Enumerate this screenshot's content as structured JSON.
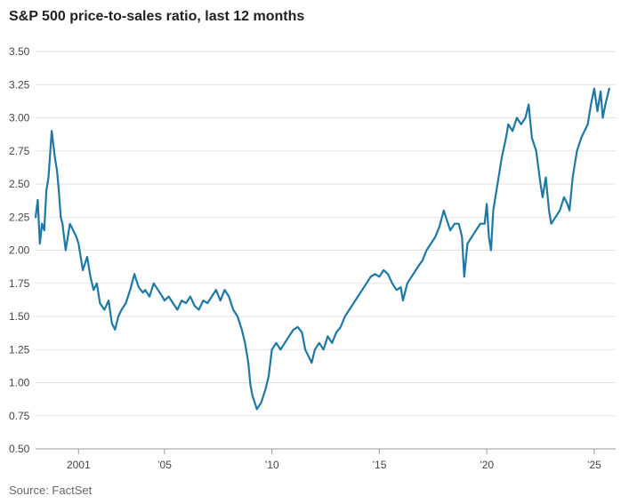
{
  "title": "S&P 500 price-to-sales ratio, last 12 months",
  "source": "Source: FactSet",
  "chart_data": {
    "type": "line",
    "title": "S&P 500 price-to-sales ratio, last 12 months",
    "xlabel": "",
    "ylabel": "",
    "ylim": [
      0.5,
      3.5
    ],
    "yticks": [
      3.5,
      3.25,
      3.0,
      2.75,
      2.5,
      2.25,
      2.0,
      1.75,
      1.5,
      1.25,
      1.0,
      0.75,
      0.5
    ],
    "ytick_labels": [
      "3.50",
      "3.25",
      "3.00",
      "2.75",
      "2.50",
      "2.25",
      "2.00",
      "1.75",
      "1.50",
      "1.25",
      "1.00",
      "0.75",
      "0.50"
    ],
    "xlim": [
      1999.0,
      2026.0
    ],
    "xticks": [
      2001,
      2005,
      2010,
      2015,
      2020,
      2025
    ],
    "xtick_labels": [
      "2001",
      "’05",
      "’10",
      "’15",
      "’20",
      "’25"
    ],
    "grid": true,
    "line_color": "#1e78a6",
    "series": [
      {
        "x": [
          1999.0,
          1999.1,
          1999.2,
          1999.3,
          1999.4,
          1999.5,
          1999.6,
          1999.75,
          1999.9,
          2000.0,
          2000.08,
          2000.17,
          2000.25,
          2000.4,
          2000.6,
          2000.75,
          2000.9,
          2001.0,
          2001.2,
          2001.4,
          2001.55,
          2001.7,
          2001.85,
          2002.0,
          2002.2,
          2002.4,
          2002.55,
          2002.7,
          2002.85,
          2003.0,
          2003.2,
          2003.4,
          2003.6,
          2003.8,
          2004.0,
          2004.1,
          2004.3,
          2004.5,
          2004.7,
          2004.9,
          2005.0,
          2005.2,
          2005.4,
          2005.6,
          2005.8,
          2006.0,
          2006.2,
          2006.4,
          2006.6,
          2006.8,
          2007.0,
          2007.2,
          2007.4,
          2007.6,
          2007.8,
          2008.0,
          2008.2,
          2008.4,
          2008.6,
          2008.75,
          2008.9,
          2009.0,
          2009.1,
          2009.3,
          2009.5,
          2009.7,
          2009.85,
          2010.0,
          2010.2,
          2010.4,
          2010.6,
          2010.8,
          2011.0,
          2011.2,
          2011.4,
          2011.55,
          2011.7,
          2011.85,
          2012.0,
          2012.2,
          2012.4,
          2012.6,
          2012.8,
          2013.0,
          2013.2,
          2013.4,
          2013.6,
          2013.8,
          2014.0,
          2014.2,
          2014.4,
          2014.6,
          2014.8,
          2015.0,
          2015.2,
          2015.4,
          2015.6,
          2015.8,
          2016.0,
          2016.1,
          2016.3,
          2016.5,
          2016.7,
          2016.9,
          2017.0,
          2017.2,
          2017.4,
          2017.6,
          2017.8,
          2018.0,
          2018.1,
          2018.3,
          2018.5,
          2018.7,
          2018.85,
          2018.95,
          2019.1,
          2019.3,
          2019.5,
          2019.7,
          2019.9,
          2020.0,
          2020.1,
          2020.2,
          2020.3,
          2020.5,
          2020.7,
          2020.9,
          2021.0,
          2021.2,
          2021.4,
          2021.6,
          2021.8,
          2021.95,
          2022.1,
          2022.3,
          2022.5,
          2022.6,
          2022.75,
          2022.9,
          2023.0,
          2023.2,
          2023.4,
          2023.6,
          2023.75,
          2023.85,
          2024.0,
          2024.2,
          2024.4,
          2024.55,
          2024.7,
          2024.85,
          2025.0,
          2025.15,
          2025.3,
          2025.4,
          2025.55,
          2025.7
        ],
        "y": [
          2.25,
          2.38,
          2.05,
          2.2,
          2.15,
          2.45,
          2.55,
          2.9,
          2.7,
          2.6,
          2.45,
          2.25,
          2.2,
          2.0,
          2.2,
          2.15,
          2.1,
          2.05,
          1.85,
          1.95,
          1.8,
          1.7,
          1.75,
          1.6,
          1.55,
          1.62,
          1.45,
          1.4,
          1.5,
          1.55,
          1.6,
          1.7,
          1.82,
          1.72,
          1.68,
          1.7,
          1.65,
          1.75,
          1.7,
          1.65,
          1.62,
          1.65,
          1.6,
          1.55,
          1.62,
          1.6,
          1.65,
          1.58,
          1.55,
          1.62,
          1.6,
          1.65,
          1.7,
          1.62,
          1.7,
          1.65,
          1.55,
          1.5,
          1.4,
          1.3,
          1.15,
          0.98,
          0.9,
          0.8,
          0.85,
          0.95,
          1.05,
          1.25,
          1.3,
          1.25,
          1.3,
          1.35,
          1.4,
          1.42,
          1.38,
          1.25,
          1.2,
          1.15,
          1.25,
          1.3,
          1.25,
          1.35,
          1.3,
          1.38,
          1.42,
          1.5,
          1.55,
          1.6,
          1.65,
          1.7,
          1.75,
          1.8,
          1.82,
          1.8,
          1.85,
          1.82,
          1.75,
          1.7,
          1.72,
          1.62,
          1.75,
          1.8,
          1.85,
          1.9,
          1.92,
          2.0,
          2.05,
          2.1,
          2.18,
          2.3,
          2.25,
          2.15,
          2.2,
          2.2,
          2.1,
          1.8,
          2.05,
          2.1,
          2.15,
          2.2,
          2.2,
          2.35,
          2.1,
          2.0,
          2.3,
          2.5,
          2.7,
          2.85,
          2.95,
          2.9,
          3.0,
          2.95,
          3.0,
          3.1,
          2.85,
          2.75,
          2.5,
          2.4,
          2.55,
          2.3,
          2.2,
          2.25,
          2.3,
          2.4,
          2.35,
          2.3,
          2.55,
          2.75,
          2.85,
          2.9,
          2.95,
          3.1,
          3.22,
          3.05,
          3.2,
          3.0,
          3.12,
          3.22
        ]
      }
    ]
  }
}
